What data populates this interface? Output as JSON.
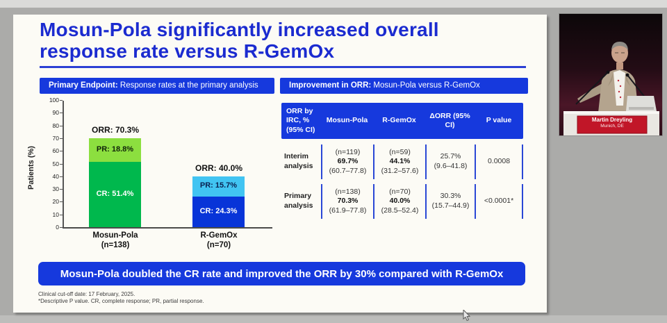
{
  "slide": {
    "title_line1": "Mosun-Pola significantly increased overall",
    "title_line2": "response rate versus R-GemOx",
    "left_panel_header_bold": "Primary Endpoint:",
    "left_panel_header_rest": " Response rates at the primary analysis",
    "right_panel_header_bold": "Improvement in ORR:",
    "right_panel_header_rest": " Mosun-Pola versus R-GemOx",
    "banner": "Mosun-Pola doubled the CR rate and improved the ORR by 30% compared with R-GemOx",
    "footnote_line1": "Clinical cut-off date: 17 February, 2025.",
    "footnote_line2": "*Descriptive P value. CR, complete response; PR, partial response."
  },
  "chart": {
    "ylabel": "Patients (%)",
    "bars": [
      {
        "orr": "ORR: 70.3%",
        "pr": "PR: 18.8%",
        "cr": "CR: 51.4%",
        "name": "Mosun-Pola",
        "n": "(n=138)"
      },
      {
        "orr": "ORR: 40.0%",
        "pr": "PR: 15.7%",
        "cr": "CR: 24.3%",
        "name": "R-GemOx",
        "n": "(n=70)"
      }
    ]
  },
  "chart_data": [
    {
      "type": "bar",
      "stacked": true,
      "title": "Primary Endpoint: Response rates at the primary analysis",
      "xlabel": "",
      "ylabel": "Patients (%)",
      "ylim": [
        0,
        100
      ],
      "yticks": [
        0,
        10,
        20,
        30,
        40,
        50,
        60,
        70,
        80,
        90,
        100
      ],
      "grid": false,
      "categories": [
        "Mosun-Pola (n=138)",
        "R-GemOx (n=70)"
      ],
      "series": [
        {
          "name": "CR",
          "values": [
            51.4,
            24.3
          ],
          "colors": [
            "#00b84d",
            "#0834d8"
          ]
        },
        {
          "name": "PR",
          "values": [
            18.8,
            15.7
          ],
          "colors": [
            "#8cdf3f",
            "#41c4f2"
          ]
        }
      ],
      "totals_annotations": [
        "ORR: 70.3%",
        "ORR: 40.0%"
      ]
    },
    {
      "type": "table",
      "title": "Improvement in ORR: Mosun-Pola versus R-GemOx",
      "columns": [
        "ORR by IRC, % (95% CI)",
        "Mosun-Pola",
        "R-GemOx",
        "ΔORR (95% CI)",
        "P value"
      ],
      "rows": [
        [
          "Interim analysis",
          "(n=119) 69.7% (60.7–77.8)",
          "(n=59) 44.1% (31.2–57.6)",
          "25.7% (9.6–41.8)",
          "0.0008"
        ],
        [
          "Primary analysis",
          "(n=138) 70.3% (61.9–77.8)",
          "(n=70) 40.0% (28.5–52.4)",
          "30.3% (15.7–44.9)",
          "<0.0001*"
        ]
      ]
    }
  ],
  "table": {
    "headers": [
      "ORR by IRC, % (95% CI)",
      "Mosun-Pola",
      "R-GemOx",
      "ΔORR (95% CI)",
      "P value"
    ],
    "rows": [
      {
        "label": "Interim analysis",
        "mosun": {
          "n": "(n=119)",
          "value": "69.7%",
          "ci": "(60.7–77.8)"
        },
        "rgemox": {
          "n": "(n=59)",
          "value": "44.1%",
          "ci": "(31.2–57.6)"
        },
        "delta": {
          "value": "25.7%",
          "ci": "(9.6–41.8)"
        },
        "pvalue": "0.0008"
      },
      {
        "label": "Primary analysis",
        "mosun": {
          "n": "(n=138)",
          "value": "70.3%",
          "ci": "(61.9–77.8)"
        },
        "rgemox": {
          "n": "(n=70)",
          "value": "40.0%",
          "ci": "(28.5–52.4)"
        },
        "delta": {
          "value": "30.3%",
          "ci": "(15.7–44.9)"
        },
        "pvalue": "<0.0001*"
      }
    ]
  },
  "video": {
    "speaker_name": "Martin Dreyling",
    "speaker_location": "Munich, DE"
  },
  "colors": {
    "title_blue": "#1b2bd0",
    "panel_blue": "#1639dd",
    "cr_green": "#00b84d",
    "pr_green": "#8cdf3f",
    "cr_blue": "#0834d8",
    "pr_blue": "#41c4f2",
    "nameplate_red": "#c11628",
    "slide_bg": "#fcfbf5",
    "page_gray": "#ababa9"
  }
}
